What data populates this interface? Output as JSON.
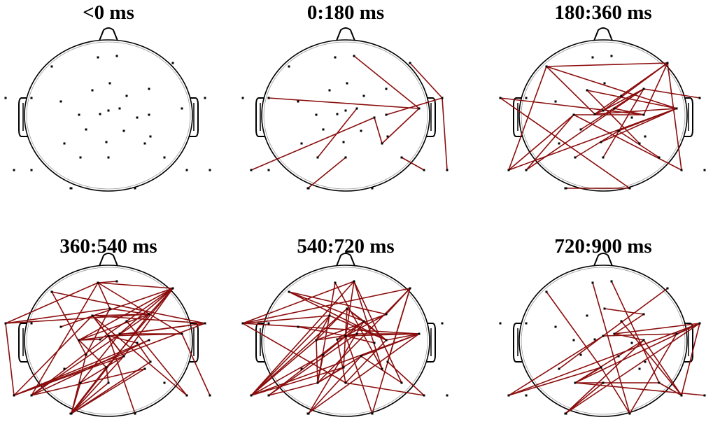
{
  "colors": {
    "background": "#ffffff",
    "head_outline": "#000000",
    "electrode": "#000000",
    "connection": "#8b0d0d"
  },
  "panels": [
    {
      "title": "<0 ms",
      "connections": []
    },
    {
      "title": "0:180 ms",
      "connections": [
        [
          29,
          13
        ],
        [
          31,
          16
        ],
        [
          15,
          25
        ],
        [
          23,
          27
        ],
        [
          28,
          27
        ],
        [
          27,
          24
        ],
        [
          1,
          20
        ],
        [
          20,
          21
        ],
        [
          21,
          25
        ],
        [
          26,
          32
        ],
        [
          34,
          25
        ]
      ]
    },
    {
      "title": "180:360 ms",
      "connections": [
        [
          1,
          3
        ],
        [
          1,
          7
        ],
        [
          7,
          26
        ],
        [
          8,
          22
        ],
        [
          3,
          25
        ],
        [
          3,
          24
        ],
        [
          2,
          22
        ],
        [
          2,
          7
        ],
        [
          7,
          23
        ],
        [
          11,
          24
        ],
        [
          22,
          27
        ],
        [
          23,
          16
        ],
        [
          19,
          0
        ],
        [
          0,
          23
        ],
        [
          19,
          29
        ],
        [
          17,
          25
        ],
        [
          11,
          3
        ],
        [
          24,
          23
        ],
        [
          9,
          21
        ],
        [
          11,
          30
        ],
        [
          22,
          30
        ],
        [
          1,
          25
        ],
        [
          13,
          22
        ],
        [
          24,
          30
        ],
        [
          17,
          32
        ],
        [
          11,
          25
        ],
        [
          9,
          25
        ],
        [
          26,
          24
        ],
        [
          31,
          17
        ],
        [
          12,
          25
        ]
      ]
    },
    {
      "title": "360:540 ms",
      "connections": [
        [
          7,
          22
        ],
        [
          28,
          25
        ],
        [
          2,
          10
        ],
        [
          9,
          30
        ],
        [
          24,
          12
        ],
        [
          2,
          22
        ],
        [
          22,
          14
        ],
        [
          17,
          30
        ],
        [
          1,
          9
        ],
        [
          1,
          17
        ],
        [
          1,
          23
        ],
        [
          13,
          29
        ],
        [
          27,
          3
        ],
        [
          10,
          14
        ],
        [
          9,
          22
        ],
        [
          6,
          17
        ],
        [
          30,
          27
        ],
        [
          2,
          30
        ],
        [
          20,
          30
        ],
        [
          11,
          7
        ],
        [
          12,
          29
        ],
        [
          0,
          22
        ],
        [
          22,
          24
        ],
        [
          24,
          17
        ],
        [
          0,
          14
        ],
        [
          31,
          17
        ],
        [
          26,
          18
        ],
        [
          16,
          24
        ],
        [
          6,
          31
        ],
        [
          30,
          25
        ],
        [
          10,
          25
        ],
        [
          7,
          24
        ],
        [
          8,
          14
        ],
        [
          2,
          23
        ],
        [
          30,
          19
        ],
        [
          4,
          24
        ],
        [
          1,
          27
        ],
        [
          27,
          7
        ],
        [
          17,
          9
        ],
        [
          9,
          27
        ],
        [
          18,
          11
        ],
        [
          6,
          8
        ],
        [
          6,
          22
        ],
        [
          18,
          24
        ],
        [
          6,
          33
        ],
        [
          2,
          21
        ],
        [
          16,
          25
        ],
        [
          0,
          10
        ],
        [
          24,
          10
        ],
        [
          3,
          8
        ],
        [
          7,
          12
        ],
        [
          12,
          13
        ],
        [
          6,
          21
        ],
        [
          16,
          31
        ],
        [
          15,
          10
        ],
        [
          20,
          33
        ],
        [
          0,
          1
        ],
        [
          9,
          26
        ]
      ]
    },
    {
      "title": "540:720 ms",
      "connections": [
        [
          1,
          14
        ],
        [
          1,
          15
        ],
        [
          23,
          9
        ],
        [
          18,
          8
        ],
        [
          30,
          25
        ],
        [
          23,
          25
        ],
        [
          16,
          2
        ],
        [
          2,
          31
        ],
        [
          25,
          16
        ],
        [
          18,
          3
        ],
        [
          8,
          31
        ],
        [
          18,
          14
        ],
        [
          24,
          0
        ],
        [
          6,
          17
        ],
        [
          26,
          33
        ],
        [
          15,
          0
        ],
        [
          11,
          13
        ],
        [
          30,
          15
        ],
        [
          23,
          14
        ],
        [
          1,
          8
        ],
        [
          32,
          15
        ],
        [
          24,
          22
        ],
        [
          15,
          21
        ],
        [
          1,
          25
        ],
        [
          7,
          16
        ],
        [
          7,
          9
        ],
        [
          0,
          25
        ],
        [
          13,
          23
        ],
        [
          1,
          12
        ],
        [
          3,
          22
        ],
        [
          10,
          21
        ],
        [
          0,
          13
        ],
        [
          9,
          0
        ],
        [
          1,
          7
        ],
        [
          13,
          26
        ],
        [
          22,
          30
        ],
        [
          4,
          30
        ],
        [
          14,
          7
        ],
        [
          19,
          24
        ],
        [
          6,
          18
        ],
        [
          2,
          30
        ],
        [
          12,
          31
        ],
        [
          25,
          29
        ],
        [
          19,
          30
        ],
        [
          18,
          11
        ],
        [
          25,
          17
        ],
        [
          3,
          23
        ],
        [
          16,
          11
        ],
        [
          24,
          31
        ],
        [
          7,
          31
        ],
        [
          10,
          31
        ],
        [
          23,
          18
        ],
        [
          17,
          32
        ],
        [
          7,
          22
        ],
        [
          6,
          29
        ],
        [
          24,
          33
        ],
        [
          31,
          17
        ],
        [
          20,
          30
        ],
        [
          12,
          14
        ],
        [
          1,
          9
        ]
      ]
    },
    {
      "title": "720:900 ms",
      "connections": [
        [
          1,
          27
        ],
        [
          26,
          32
        ],
        [
          1,
          12
        ],
        [
          5,
          30
        ],
        [
          31,
          12
        ],
        [
          25,
          19
        ],
        [
          27,
          16
        ],
        [
          28,
          31
        ],
        [
          23,
          16
        ],
        [
          31,
          23
        ],
        [
          18,
          26
        ],
        [
          23,
          26
        ],
        [
          22,
          16
        ],
        [
          24,
          30
        ],
        [
          12,
          19
        ],
        [
          29,
          27
        ],
        [
          22,
          14
        ],
        [
          26,
          27
        ],
        [
          27,
          31
        ],
        [
          1,
          30
        ],
        [
          23,
          29
        ],
        [
          27,
          25
        ],
        [
          32,
          31
        ],
        [
          15,
          32
        ],
        [
          13,
          29
        ],
        [
          3,
          12
        ],
        [
          10,
          19
        ],
        [
          25,
          30
        ]
      ]
    }
  ]
}
